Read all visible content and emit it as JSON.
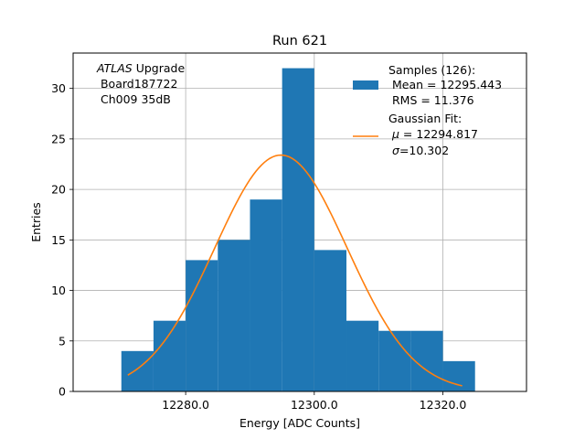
{
  "chart_data": {
    "type": "bar",
    "title": "Run 621",
    "xlabel": "Energy [ADC Counts]",
    "ylabel": "Entries",
    "xlim": [
      12262.5,
      12333.0
    ],
    "ylim": [
      0,
      33.5
    ],
    "grid": true,
    "xticks": [
      12280.0,
      12300.0,
      12320.0
    ],
    "xtick_labels": [
      "12280.0",
      "12300.0",
      "12320.0"
    ],
    "yticks": [
      0,
      5,
      10,
      15,
      20,
      25,
      30
    ],
    "yticks_labels": [
      "0",
      "5",
      "10",
      "15",
      "20",
      "25",
      "30"
    ],
    "histogram": {
      "name": "Samples (126):",
      "color": "#1f77b4",
      "bin_edges": [
        12270.0,
        12275.0,
        12280.0,
        12285.0,
        12290.0,
        12295.0,
        12300.0,
        12305.0,
        12310.0,
        12315.0,
        12320.0,
        12325.0
      ],
      "counts": [
        4,
        7,
        13,
        15,
        19,
        32,
        14,
        7,
        6,
        6,
        3
      ]
    },
    "fit": {
      "name": "Gaussian Fit:",
      "color": "#ff7f0e",
      "mu": 12294.817,
      "sigma": 10.302,
      "amplitude": 23.4,
      "x_range": [
        12271.0,
        12323.0
      ]
    },
    "legend": {
      "placement": "top-right",
      "samples_title": "Samples (126):",
      "samples_mean": " Mean = 12295.443",
      "samples_rms": " RMS = 11.376",
      "fit_title": "Gaussian Fit:",
      "fit_mu_symbol": "μ",
      "fit_mu_value": " = 12294.817",
      "fit_sigma_symbol": "σ",
      "fit_sigma_value": "=10.302"
    },
    "annotation": {
      "experiment": "ATLAS",
      "experiment_suffix": " Upgrade",
      "board": " Board187722",
      "channel": " Ch009 35dB"
    }
  }
}
